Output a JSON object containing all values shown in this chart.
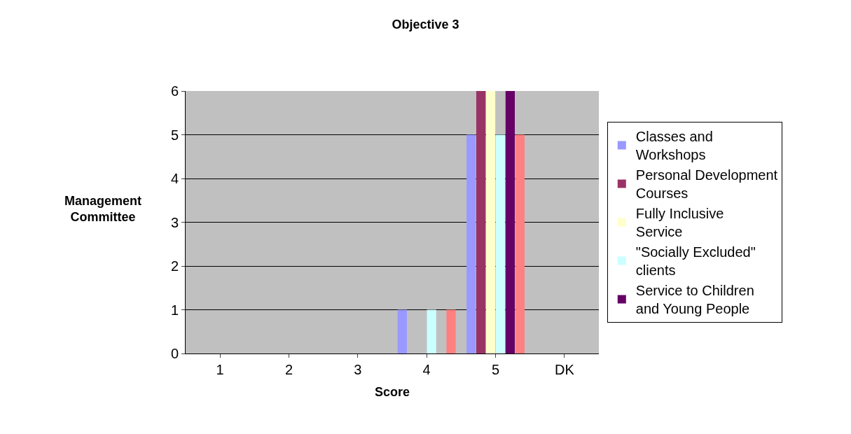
{
  "chart_data": {
    "type": "bar",
    "title": "Objective 3",
    "xlabel": "Score",
    "ylabel": "Management Committee",
    "categories": [
      "1",
      "2",
      "3",
      "4",
      "5",
      "DK"
    ],
    "series": [
      {
        "name": "Classes and Workshops",
        "color": "#9999ff",
        "values": [
          0,
          0,
          0,
          1,
          5,
          null
        ]
      },
      {
        "name": "Personal Development Courses",
        "color": "#993366",
        "values": [
          0,
          0,
          0,
          0,
          6,
          null
        ]
      },
      {
        "name": "Fully Inclusive Service",
        "color": "#ffffcc",
        "values": [
          0,
          0,
          0,
          0,
          6,
          null
        ]
      },
      {
        "name": "\"Socially Excluded\" clients",
        "color": "#ccffff",
        "values": [
          0,
          0,
          0,
          1,
          5,
          null
        ]
      },
      {
        "name": "Service to Children and Young People",
        "color": "#660066",
        "values": [
          0,
          0,
          0,
          0,
          6,
          null
        ]
      },
      {
        "color": "#ff8080",
        "values": [
          0,
          0,
          0,
          1,
          5,
          null
        ]
      }
    ],
    "ylim": [
      0,
      6
    ],
    "yticks": [
      0,
      1,
      2,
      3,
      4,
      5,
      6
    ],
    "grid": "y",
    "legend": "right"
  }
}
